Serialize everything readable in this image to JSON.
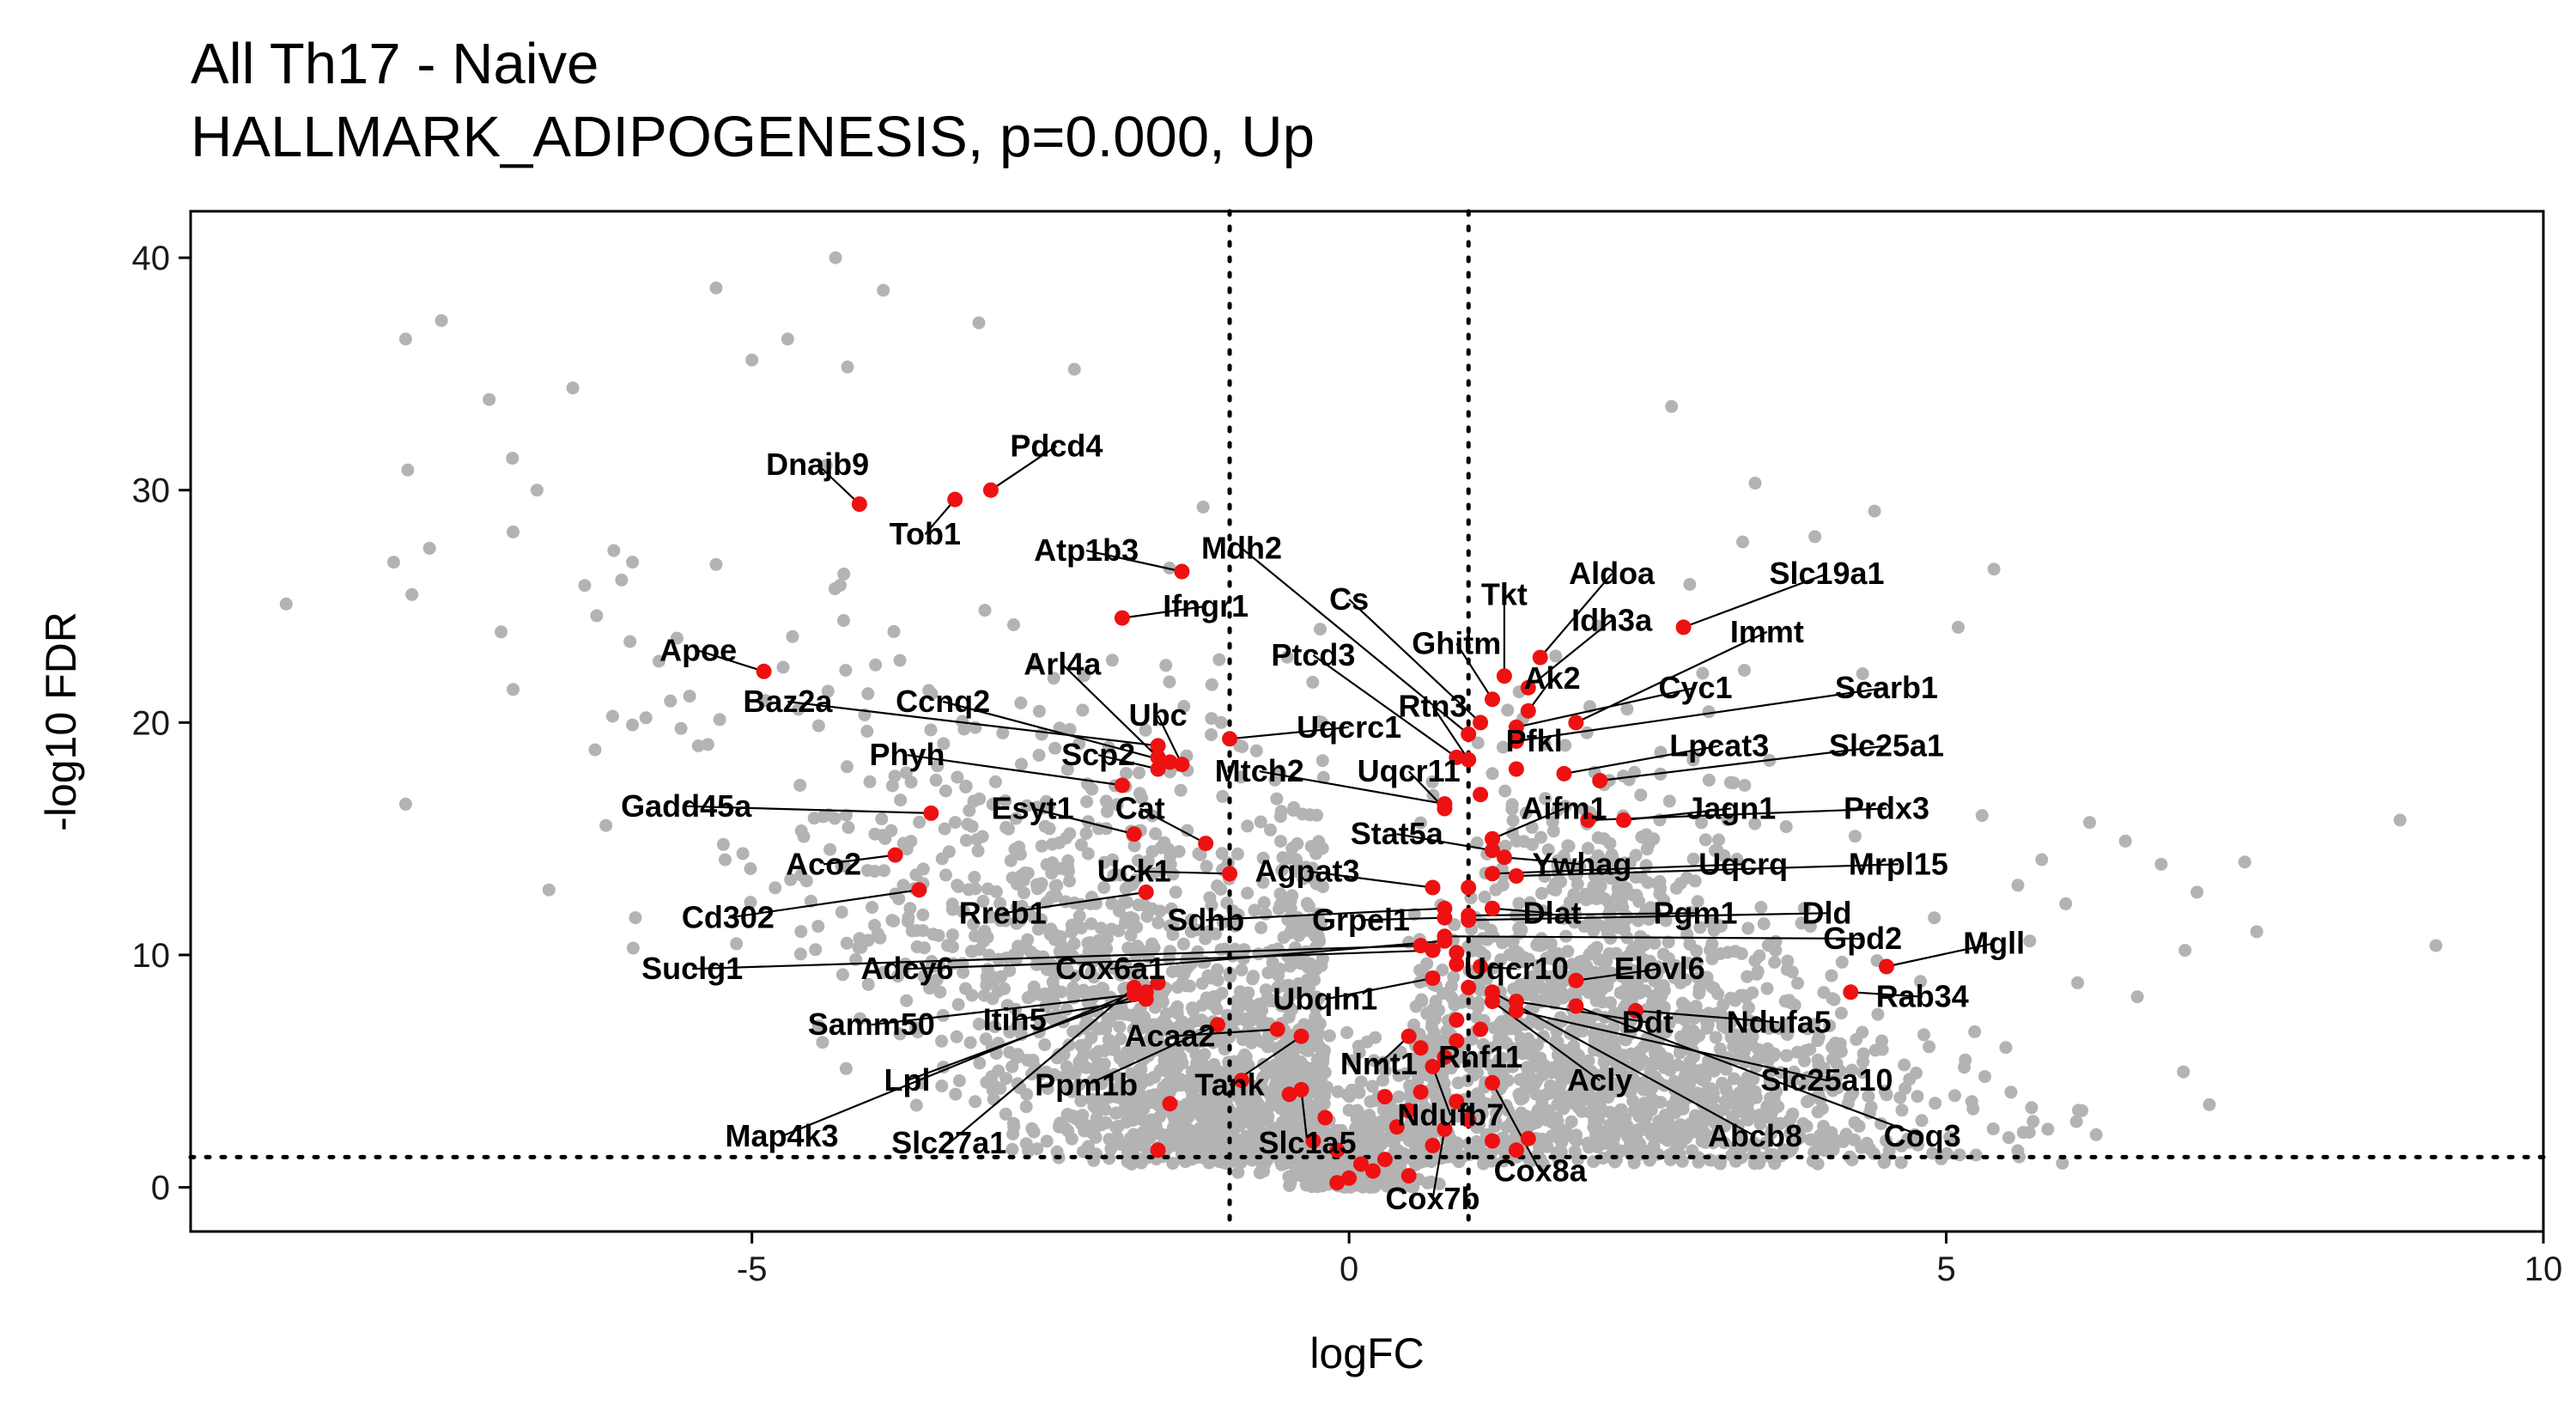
{
  "chart_data": {
    "type": "scatter",
    "title": "All Th17 - Naive",
    "subtitle": "HALLMARK_ADIPOGENESIS, p=0.000, Up",
    "xlabel": "logFC",
    "ylabel": "-log10 FDR",
    "xlim": [
      -9.7,
      10
    ],
    "ylim": [
      -1.9,
      42
    ],
    "x_ticks": [
      -5,
      0,
      5,
      10
    ],
    "y_ticks": [
      0,
      10,
      20,
      30,
      40
    ],
    "x_tick_labels": [
      "-5",
      "0",
      "5",
      "10"
    ],
    "y_tick_labels": [
      "0",
      "10",
      "20",
      "30",
      "40"
    ],
    "grid": false,
    "legend": "none",
    "thresholds": {
      "logFC": [
        -1,
        1
      ],
      "neg_log10_fdr": 1.3
    },
    "colors": {
      "background_points": "#b3b3b3",
      "highlight_points": "#ee1111",
      "reference_lines": "#000000"
    },
    "highlighted_genes": [
      {
        "label": "Dnajb9",
        "x": -4.1,
        "y": 29.4,
        "lx": -4.45,
        "ly": 31.1
      },
      {
        "label": "Pdcd4",
        "x": -3.0,
        "y": 30.0,
        "lx": -2.45,
        "ly": 31.9
      },
      {
        "label": "Tob1",
        "x": -3.3,
        "y": 29.6,
        "lx": -3.55,
        "ly": 28.1
      },
      {
        "label": "Atp1b3",
        "x": -1.4,
        "y": 26.5,
        "lx": -2.2,
        "ly": 27.4
      },
      {
        "label": "Mdh2",
        "x": 1.0,
        "y": 19.5,
        "lx": -0.9,
        "ly": 27.5
      },
      {
        "label": "Ifngr1",
        "x": -1.9,
        "y": 24.5,
        "lx": -1.2,
        "ly": 25.0
      },
      {
        "label": "Cs",
        "x": 1.1,
        "y": 20.0,
        "lx": 0.0,
        "ly": 25.3
      },
      {
        "label": "Tkt",
        "x": 1.3,
        "y": 22.0,
        "lx": 1.3,
        "ly": 25.5
      },
      {
        "label": "Aldoa",
        "x": 1.6,
        "y": 22.8,
        "lx": 2.2,
        "ly": 26.4
      },
      {
        "label": "Slc19a1",
        "x": 2.8,
        "y": 24.1,
        "lx": 4.0,
        "ly": 26.4
      },
      {
        "label": "Apoe",
        "x": -4.9,
        "y": 22.2,
        "lx": -5.45,
        "ly": 23.1
      },
      {
        "label": "Idh3a",
        "x": 1.5,
        "y": 21.5,
        "lx": 2.2,
        "ly": 24.4
      },
      {
        "label": "Immt",
        "x": 1.9,
        "y": 20.0,
        "lx": 3.5,
        "ly": 23.9
      },
      {
        "label": "Ghitm",
        "x": 1.2,
        "y": 21.0,
        "lx": 0.9,
        "ly": 23.4
      },
      {
        "label": "Ptcd3",
        "x": 0.9,
        "y": 18.5,
        "lx": -0.3,
        "ly": 22.9
      },
      {
        "label": "Arl4a",
        "x": -1.6,
        "y": 18.5,
        "lx": -2.4,
        "ly": 22.5
      },
      {
        "label": "Ak2",
        "x": 1.5,
        "y": 20.5,
        "lx": 1.7,
        "ly": 21.9
      },
      {
        "label": "Cyc1",
        "x": 1.4,
        "y": 19.8,
        "lx": 2.9,
        "ly": 21.5
      },
      {
        "label": "Scarb1",
        "x": 1.4,
        "y": 19.2,
        "lx": 4.5,
        "ly": 21.5
      },
      {
        "label": "Baz2a",
        "x": -1.6,
        "y": 19.0,
        "lx": -4.7,
        "ly": 20.9
      },
      {
        "label": "Ccnq2",
        "x": -1.5,
        "y": 18.3,
        "lx": -3.4,
        "ly": 20.9
      },
      {
        "label": "Rtn3",
        "x": 1.0,
        "y": 18.4,
        "lx": 0.7,
        "ly": 20.7
      },
      {
        "label": "Ubc",
        "x": -1.4,
        "y": 18.2,
        "lx": -1.6,
        "ly": 20.3
      },
      {
        "label": "Uqcrc1",
        "x": -1.0,
        "y": 19.3,
        "lx": 0.0,
        "ly": 19.8
      },
      {
        "label": "Pfkl",
        "x": 1.4,
        "y": 18.0,
        "lx": 1.55,
        "ly": 19.2
      },
      {
        "label": "Lpcat3",
        "x": 1.8,
        "y": 17.8,
        "lx": 3.1,
        "ly": 19.0
      },
      {
        "label": "Slc25a1",
        "x": 2.1,
        "y": 17.5,
        "lx": 4.5,
        "ly": 19.0
      },
      {
        "label": "Phyh",
        "x": -1.9,
        "y": 17.3,
        "lx": -3.7,
        "ly": 18.6
      },
      {
        "label": "Scp2",
        "x": -1.6,
        "y": 18.0,
        "lx": -2.1,
        "ly": 18.6
      },
      {
        "label": "Mtch2",
        "x": 0.8,
        "y": 16.5,
        "lx": -0.75,
        "ly": 17.9
      },
      {
        "label": "Uqcr11",
        "x": 0.8,
        "y": 16.3,
        "lx": 0.5,
        "ly": 17.9
      },
      {
        "label": "Aifm1",
        "x": 1.2,
        "y": 15.0,
        "lx": 1.8,
        "ly": 16.3
      },
      {
        "label": "Jagn1",
        "x": 2.3,
        "y": 15.8,
        "lx": 3.2,
        "ly": 16.3
      },
      {
        "label": "Prdx3",
        "x": 2.0,
        "y": 15.8,
        "lx": 4.5,
        "ly": 16.3
      },
      {
        "label": "Gadd45a",
        "x": -3.5,
        "y": 16.1,
        "lx": -5.55,
        "ly": 16.4
      },
      {
        "label": "Esyt1",
        "x": -1.8,
        "y": 15.2,
        "lx": -2.65,
        "ly": 16.3
      },
      {
        "label": "Cat",
        "x": -1.2,
        "y": 14.8,
        "lx": -1.75,
        "ly": 16.3
      },
      {
        "label": "Stat5a",
        "x": 1.2,
        "y": 14.5,
        "lx": 0.4,
        "ly": 15.2
      },
      {
        "label": "Ywhag",
        "x": 1.3,
        "y": 14.2,
        "lx": 1.95,
        "ly": 13.9
      },
      {
        "label": "Uqcrq",
        "x": 1.2,
        "y": 13.5,
        "lx": 3.3,
        "ly": 13.9
      },
      {
        "label": "Mrpl15",
        "x": 1.4,
        "y": 13.4,
        "lx": 4.6,
        "ly": 13.9
      },
      {
        "label": "Aco2",
        "x": -3.8,
        "y": 14.3,
        "lx": -4.4,
        "ly": 13.9
      },
      {
        "label": "Uck1",
        "x": -1.0,
        "y": 13.5,
        "lx": -1.8,
        "ly": 13.6
      },
      {
        "label": "Agpat3",
        "x": 0.7,
        "y": 12.9,
        "lx": -0.35,
        "ly": 13.6
      },
      {
        "label": "Rreb1",
        "x": -1.7,
        "y": 12.7,
        "lx": -2.9,
        "ly": 11.8
      },
      {
        "label": "Sdhb",
        "x": 0.8,
        "y": 12.0,
        "lx": -1.2,
        "ly": 11.5
      },
      {
        "label": "Grpel1",
        "x": 0.8,
        "y": 11.6,
        "lx": 0.1,
        "ly": 11.5
      },
      {
        "label": "Dlat",
        "x": 1.2,
        "y": 12.0,
        "lx": 1.7,
        "ly": 11.8
      },
      {
        "label": "Pgm1",
        "x": 1.0,
        "y": 11.7,
        "lx": 2.9,
        "ly": 11.8
      },
      {
        "label": "Dld",
        "x": 1.0,
        "y": 11.5,
        "lx": 4.0,
        "ly": 11.8
      },
      {
        "label": "Cd302",
        "x": -3.6,
        "y": 12.8,
        "lx": -5.2,
        "ly": 11.6
      },
      {
        "label": "Mgll",
        "x": 4.5,
        "y": 9.5,
        "lx": 5.4,
        "ly": 10.5
      },
      {
        "label": "Gpd2",
        "x": 0.8,
        "y": 10.8,
        "lx": 4.3,
        "ly": 10.7
      },
      {
        "label": "Suclg1",
        "x": 0.6,
        "y": 10.4,
        "lx": -5.5,
        "ly": 9.4
      },
      {
        "label": "Adcy6",
        "x": 0.7,
        "y": 10.2,
        "lx": -3.7,
        "ly": 9.4
      },
      {
        "label": "Cox6a1",
        "x": 0.8,
        "y": 10.6,
        "lx": -2.0,
        "ly": 9.4
      },
      {
        "label": "Uqcr10",
        "x": 1.1,
        "y": 9.5,
        "lx": 1.4,
        "ly": 9.4
      },
      {
        "label": "Elovl6",
        "x": 1.9,
        "y": 8.9,
        "lx": 2.6,
        "ly": 9.4
      },
      {
        "label": "Rab34",
        "x": 4.2,
        "y": 8.4,
        "lx": 4.8,
        "ly": 8.2
      },
      {
        "label": "Samm50",
        "x": -1.8,
        "y": 8.3,
        "lx": -4.0,
        "ly": 7.0
      },
      {
        "label": "Itih5",
        "x": -1.7,
        "y": 8.1,
        "lx": -2.8,
        "ly": 7.2
      },
      {
        "label": "Ubqln1",
        "x": 0.7,
        "y": 9.0,
        "lx": -0.2,
        "ly": 8.1
      },
      {
        "label": "Ddt",
        "x": 1.4,
        "y": 8.0,
        "lx": 2.5,
        "ly": 7.1
      },
      {
        "label": "Ndufa5",
        "x": 2.4,
        "y": 7.6,
        "lx": 3.6,
        "ly": 7.1
      },
      {
        "label": "Acaa2",
        "x": -0.6,
        "y": 6.8,
        "lx": -1.5,
        "ly": 6.5
      },
      {
        "label": "Lpl",
        "x": -1.7,
        "y": 8.4,
        "lx": -3.7,
        "ly": 4.6
      },
      {
        "label": "Nmt1",
        "x": 0.5,
        "y": 6.5,
        "lx": 0.25,
        "ly": 5.3
      },
      {
        "label": "Rnf11",
        "x": 0.9,
        "y": 6.3,
        "lx": 1.1,
        "ly": 5.6
      },
      {
        "label": "Ppm1b",
        "x": -1.1,
        "y": 7.0,
        "lx": -2.2,
        "ly": 4.4
      },
      {
        "label": "Tank",
        "x": -0.4,
        "y": 6.5,
        "lx": -1.0,
        "ly": 4.4
      },
      {
        "label": "Acly",
        "x": 1.2,
        "y": 8.0,
        "lx": 2.1,
        "ly": 4.6
      },
      {
        "label": "Slc25a10",
        "x": 1.4,
        "y": 7.6,
        "lx": 4.0,
        "ly": 4.6
      },
      {
        "label": "Ndufb7",
        "x": 0.7,
        "y": 5.2,
        "lx": 0.85,
        "ly": 3.1
      },
      {
        "label": "Map4k3",
        "x": -1.6,
        "y": 8.8,
        "lx": -4.75,
        "ly": 2.2
      },
      {
        "label": "Slc27a1",
        "x": -1.8,
        "y": 8.6,
        "lx": -3.35,
        "ly": 1.9
      },
      {
        "label": "Abcb8",
        "x": 1.2,
        "y": 8.4,
        "lx": 3.4,
        "ly": 2.2
      },
      {
        "label": "Coq3",
        "x": 1.9,
        "y": 7.8,
        "lx": 4.8,
        "ly": 2.2
      },
      {
        "label": "Slc1a5",
        "x": -0.4,
        "y": 4.2,
        "lx": -0.35,
        "ly": 1.9
      },
      {
        "label": "Cox8a",
        "x": 1.2,
        "y": 4.5,
        "lx": 1.6,
        "ly": 0.7
      },
      {
        "label": "Cox7b",
        "x": 0.8,
        "y": 2.5,
        "lx": 0.7,
        "ly": -0.5
      }
    ],
    "extra_highlight_points": [
      {
        "x": -0.9,
        "y": 4.6
      },
      {
        "x": -1.5,
        "y": 3.6
      },
      {
        "x": -0.5,
        "y": 4.0
      },
      {
        "x": -1.6,
        "y": 1.6
      },
      {
        "x": -0.3,
        "y": 2.0
      },
      {
        "x": -0.1,
        "y": 1.6
      },
      {
        "x": 0.0,
        "y": 0.4
      },
      {
        "x": 0.1,
        "y": 1.0
      },
      {
        "x": -0.1,
        "y": 0.2
      },
      {
        "x": 0.2,
        "y": 0.7
      },
      {
        "x": 0.3,
        "y": 1.2
      },
      {
        "x": 0.4,
        "y": 2.6
      },
      {
        "x": 0.5,
        "y": 3.3
      },
      {
        "x": 0.6,
        "y": 4.1
      },
      {
        "x": 0.8,
        "y": 5.6
      },
      {
        "x": 0.9,
        "y": 3.7
      },
      {
        "x": 1.0,
        "y": 2.9
      },
      {
        "x": 1.2,
        "y": 2.0
      },
      {
        "x": 1.4,
        "y": 1.6
      },
      {
        "x": 1.5,
        "y": 2.1
      },
      {
        "x": 0.6,
        "y": 6.0
      },
      {
        "x": 0.9,
        "y": 7.2
      },
      {
        "x": 1.0,
        "y": 8.6
      },
      {
        "x": 0.5,
        "y": 0.5
      },
      {
        "x": 0.3,
        "y": 3.9
      },
      {
        "x": 1.1,
        "y": 6.8
      },
      {
        "x": 0.7,
        "y": 1.8
      },
      {
        "x": -0.2,
        "y": 3.0
      },
      {
        "x": 0.9,
        "y": 10.1
      },
      {
        "x": 1.0,
        "y": 12.9
      },
      {
        "x": 1.1,
        "y": 16.9
      },
      {
        "x": 0.9,
        "y": 9.6
      }
    ],
    "sparse_background_points": [
      {
        "x": -8.9,
        "y": 25.1
      },
      {
        "x": -7.9,
        "y": 36.5
      },
      {
        "x": -7.6,
        "y": 37.3
      },
      {
        "x": -7.2,
        "y": 33.9
      },
      {
        "x": -6.5,
        "y": 34.4
      },
      {
        "x": -6.8,
        "y": 30.0
      },
      {
        "x": -7.0,
        "y": 28.2
      },
      {
        "x": -6.4,
        "y": 25.9
      },
      {
        "x": -6.0,
        "y": 26.9
      },
      {
        "x": -7.1,
        "y": 23.9
      },
      {
        "x": -6.3,
        "y": 24.6
      },
      {
        "x": -8.0,
        "y": 26.9
      },
      {
        "x": -7.7,
        "y": 27.5
      },
      {
        "x": -5.3,
        "y": 38.7
      },
      {
        "x": -4.3,
        "y": 40.0
      },
      {
        "x": -3.9,
        "y": 38.6
      },
      {
        "x": -4.7,
        "y": 36.5
      },
      {
        "x": -5.0,
        "y": 35.6
      },
      {
        "x": -3.1,
        "y": 37.2
      },
      {
        "x": -6.7,
        "y": 12.8
      },
      {
        "x": -6.0,
        "y": 19.9
      },
      {
        "x": -5.3,
        "y": 26.8
      },
      {
        "x": -2.3,
        "y": 35.2
      },
      {
        "x": -4.2,
        "y": 35.3
      },
      {
        "x": 2.7,
        "y": 33.6
      },
      {
        "x": 3.4,
        "y": 30.3
      },
      {
        "x": 4.4,
        "y": 29.1
      },
      {
        "x": 5.4,
        "y": 26.6
      },
      {
        "x": 3.9,
        "y": 28.0
      },
      {
        "x": 4.3,
        "y": 22.1
      },
      {
        "x": 5.1,
        "y": 24.1
      },
      {
        "x": 8.8,
        "y": 15.8
      },
      {
        "x": 9.1,
        "y": 10.4
      },
      {
        "x": 7.5,
        "y": 14.0
      },
      {
        "x": 7.1,
        "y": 12.7
      },
      {
        "x": 6.5,
        "y": 14.9
      },
      {
        "x": 6.2,
        "y": 15.7
      },
      {
        "x": 5.8,
        "y": 14.1
      },
      {
        "x": 7.0,
        "y": 10.2
      },
      {
        "x": 6.6,
        "y": 8.2
      },
      {
        "x": 6.1,
        "y": 8.8
      },
      {
        "x": 6.0,
        "y": 12.2
      },
      {
        "x": 7.6,
        "y": 11.0
      },
      {
        "x": 6.8,
        "y": 13.9
      },
      {
        "x": 5.6,
        "y": 13.0
      },
      {
        "x": 5.3,
        "y": 16.0
      },
      {
        "x": 5.7,
        "y": 10.6
      },
      {
        "x": 4.9,
        "y": 11.6
      }
    ]
  }
}
